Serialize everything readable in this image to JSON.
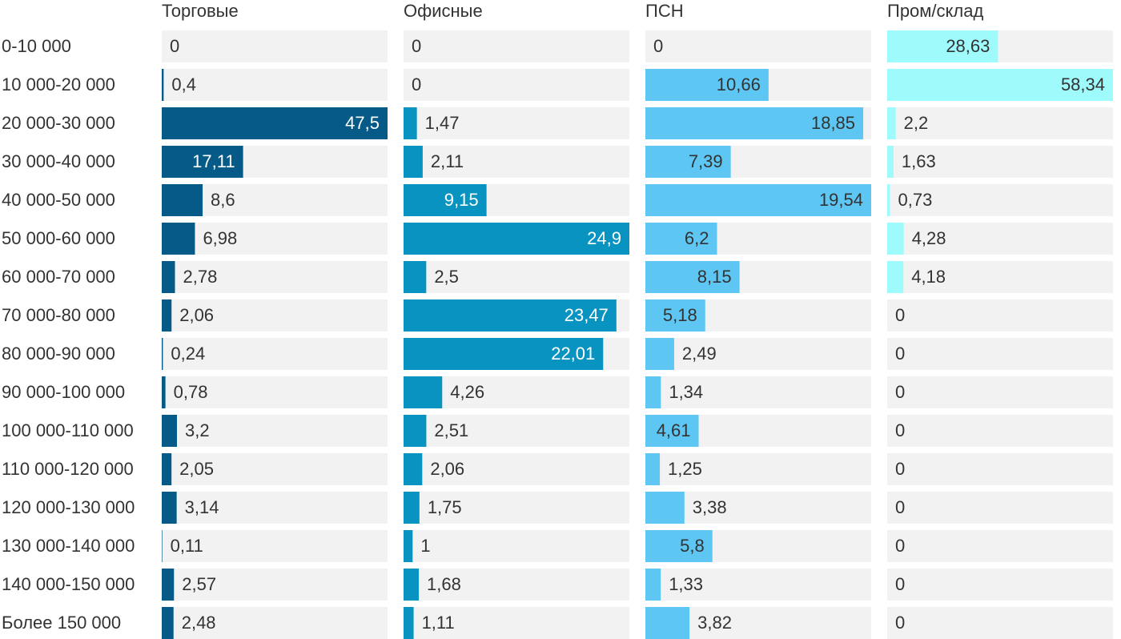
{
  "chart_data": {
    "type": "bar",
    "orientation": "horizontal",
    "categories": [
      "0-10 000",
      "10 000-20 000",
      "20 000-30 000",
      "30 000-40 000",
      "40 000-50 000",
      "50 000-60 000",
      "60 000-70 000",
      "70 000-80 000",
      "80 000-90 000",
      "90 000-100 000",
      "100 000-110 000",
      "110 000-120 000",
      "120 000-130 000",
      "130 000-140 000",
      "140 000-150 000",
      "Более 150 000"
    ],
    "series": [
      {
        "name": "Торговые",
        "color": "#065a87",
        "values": [
          0,
          0.4,
          47.5,
          17.11,
          8.6,
          6.98,
          2.78,
          2.06,
          0.24,
          0.78,
          3.2,
          2.05,
          3.14,
          0.11,
          2.57,
          2.48
        ],
        "value_labels": [
          "0",
          "0,4",
          "47,5",
          "17,11",
          "8,6",
          "6,98",
          "2,78",
          "2,06",
          "0,24",
          "0,78",
          "3,2",
          "2,05",
          "3,14",
          "0,11",
          "2,57",
          "2,48"
        ]
      },
      {
        "name": "Офисные",
        "color": "#0893c0",
        "values": [
          0,
          0,
          1.47,
          2.11,
          9.15,
          24.9,
          2.5,
          23.47,
          22.01,
          4.26,
          2.51,
          2.06,
          1.75,
          1,
          1.68,
          1.11
        ],
        "value_labels": [
          "0",
          "0",
          "1,47",
          "2,11",
          "9,15",
          "24,9",
          "2,5",
          "23,47",
          "22,01",
          "4,26",
          "2,51",
          "2,06",
          "1,75",
          "1",
          "1,68",
          "1,11"
        ]
      },
      {
        "name": "ПСН",
        "color": "#5ec6f3",
        "values": [
          0,
          10.66,
          18.85,
          7.39,
          19.54,
          6.2,
          8.15,
          5.18,
          2.49,
          1.34,
          4.61,
          1.25,
          3.38,
          5.8,
          1.33,
          3.82
        ],
        "value_labels": [
          "0",
          "10,66",
          "18,85",
          "7,39",
          "19,54",
          "6,2",
          "8,15",
          "5,18",
          "2,49",
          "1,34",
          "4,61",
          "1,25",
          "3,38",
          "5,8",
          "1,33",
          "3,82"
        ]
      },
      {
        "name": "Пром/склад",
        "color": "#9ffafc",
        "values": [
          28.63,
          58.34,
          2.2,
          1.63,
          0.73,
          4.28,
          4.18,
          0,
          0,
          0,
          0,
          0,
          0,
          0,
          0,
          0
        ],
        "value_labels": [
          "28,63",
          "58,34",
          "2,2",
          "1,63",
          "0,73",
          "4,28",
          "4,18",
          "0",
          "0",
          "0",
          "0",
          "0",
          "0",
          "0",
          "0",
          "0"
        ]
      }
    ]
  }
}
